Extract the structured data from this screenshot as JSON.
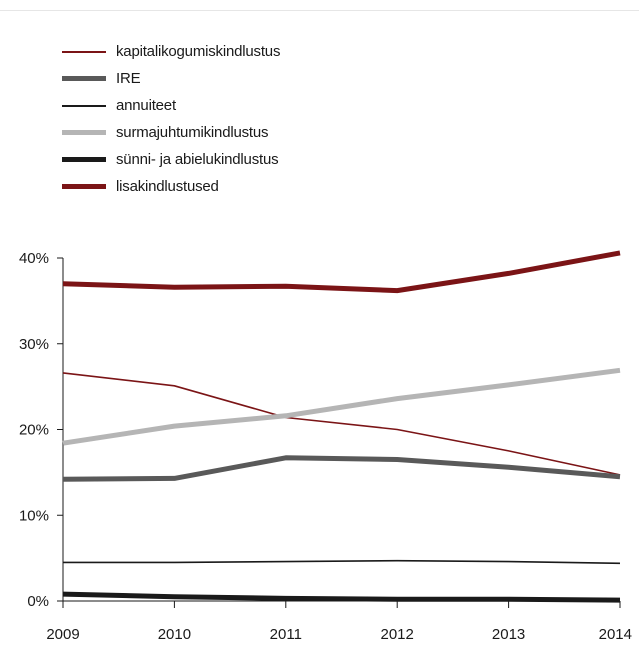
{
  "chart_data": {
    "type": "line",
    "title": "",
    "xlabel": "",
    "ylabel": "",
    "x": [
      2009,
      2010,
      2011,
      2012,
      2013,
      2014
    ],
    "ylim": [
      0,
      40
    ],
    "yticks": [
      0,
      10,
      20,
      30,
      40
    ],
    "ytick_labels": [
      "0%",
      "10%",
      "20%",
      "30%",
      "40%"
    ],
    "xtick_labels": [
      "2009",
      "2010",
      "2011",
      "2012",
      "2013",
      "2014"
    ],
    "grid": false,
    "legend_position": "top-left",
    "series": [
      {
        "name": "kapitalikogumiskindlustus",
        "color": "#7b1416",
        "style": "thin",
        "values": [
          26.6,
          25.1,
          21.4,
          20.0,
          17.5,
          14.7
        ]
      },
      {
        "name": "IRE",
        "color": "#595959",
        "style": "thick",
        "values": [
          14.2,
          14.3,
          16.7,
          16.5,
          15.6,
          14.5
        ]
      },
      {
        "name": "annuiteet",
        "color": "#1a1a1a",
        "style": "thin",
        "values": [
          4.5,
          4.5,
          4.6,
          4.7,
          4.6,
          4.4
        ]
      },
      {
        "name": "surmajuhtumikindlustus",
        "color": "#b5b5b5",
        "style": "thick",
        "values": [
          18.4,
          20.4,
          21.6,
          23.6,
          25.2,
          26.9
        ]
      },
      {
        "name": "sünni- ja abielukindlustus",
        "color": "#1a1a1a",
        "style": "thick",
        "values": [
          0.8,
          0.5,
          0.3,
          0.2,
          0.2,
          0.1
        ]
      },
      {
        "name": "lisakindlustused",
        "color": "#7b1416",
        "style": "thick",
        "values": [
          37.0,
          36.6,
          36.7,
          36.2,
          38.2,
          40.6
        ]
      }
    ]
  }
}
